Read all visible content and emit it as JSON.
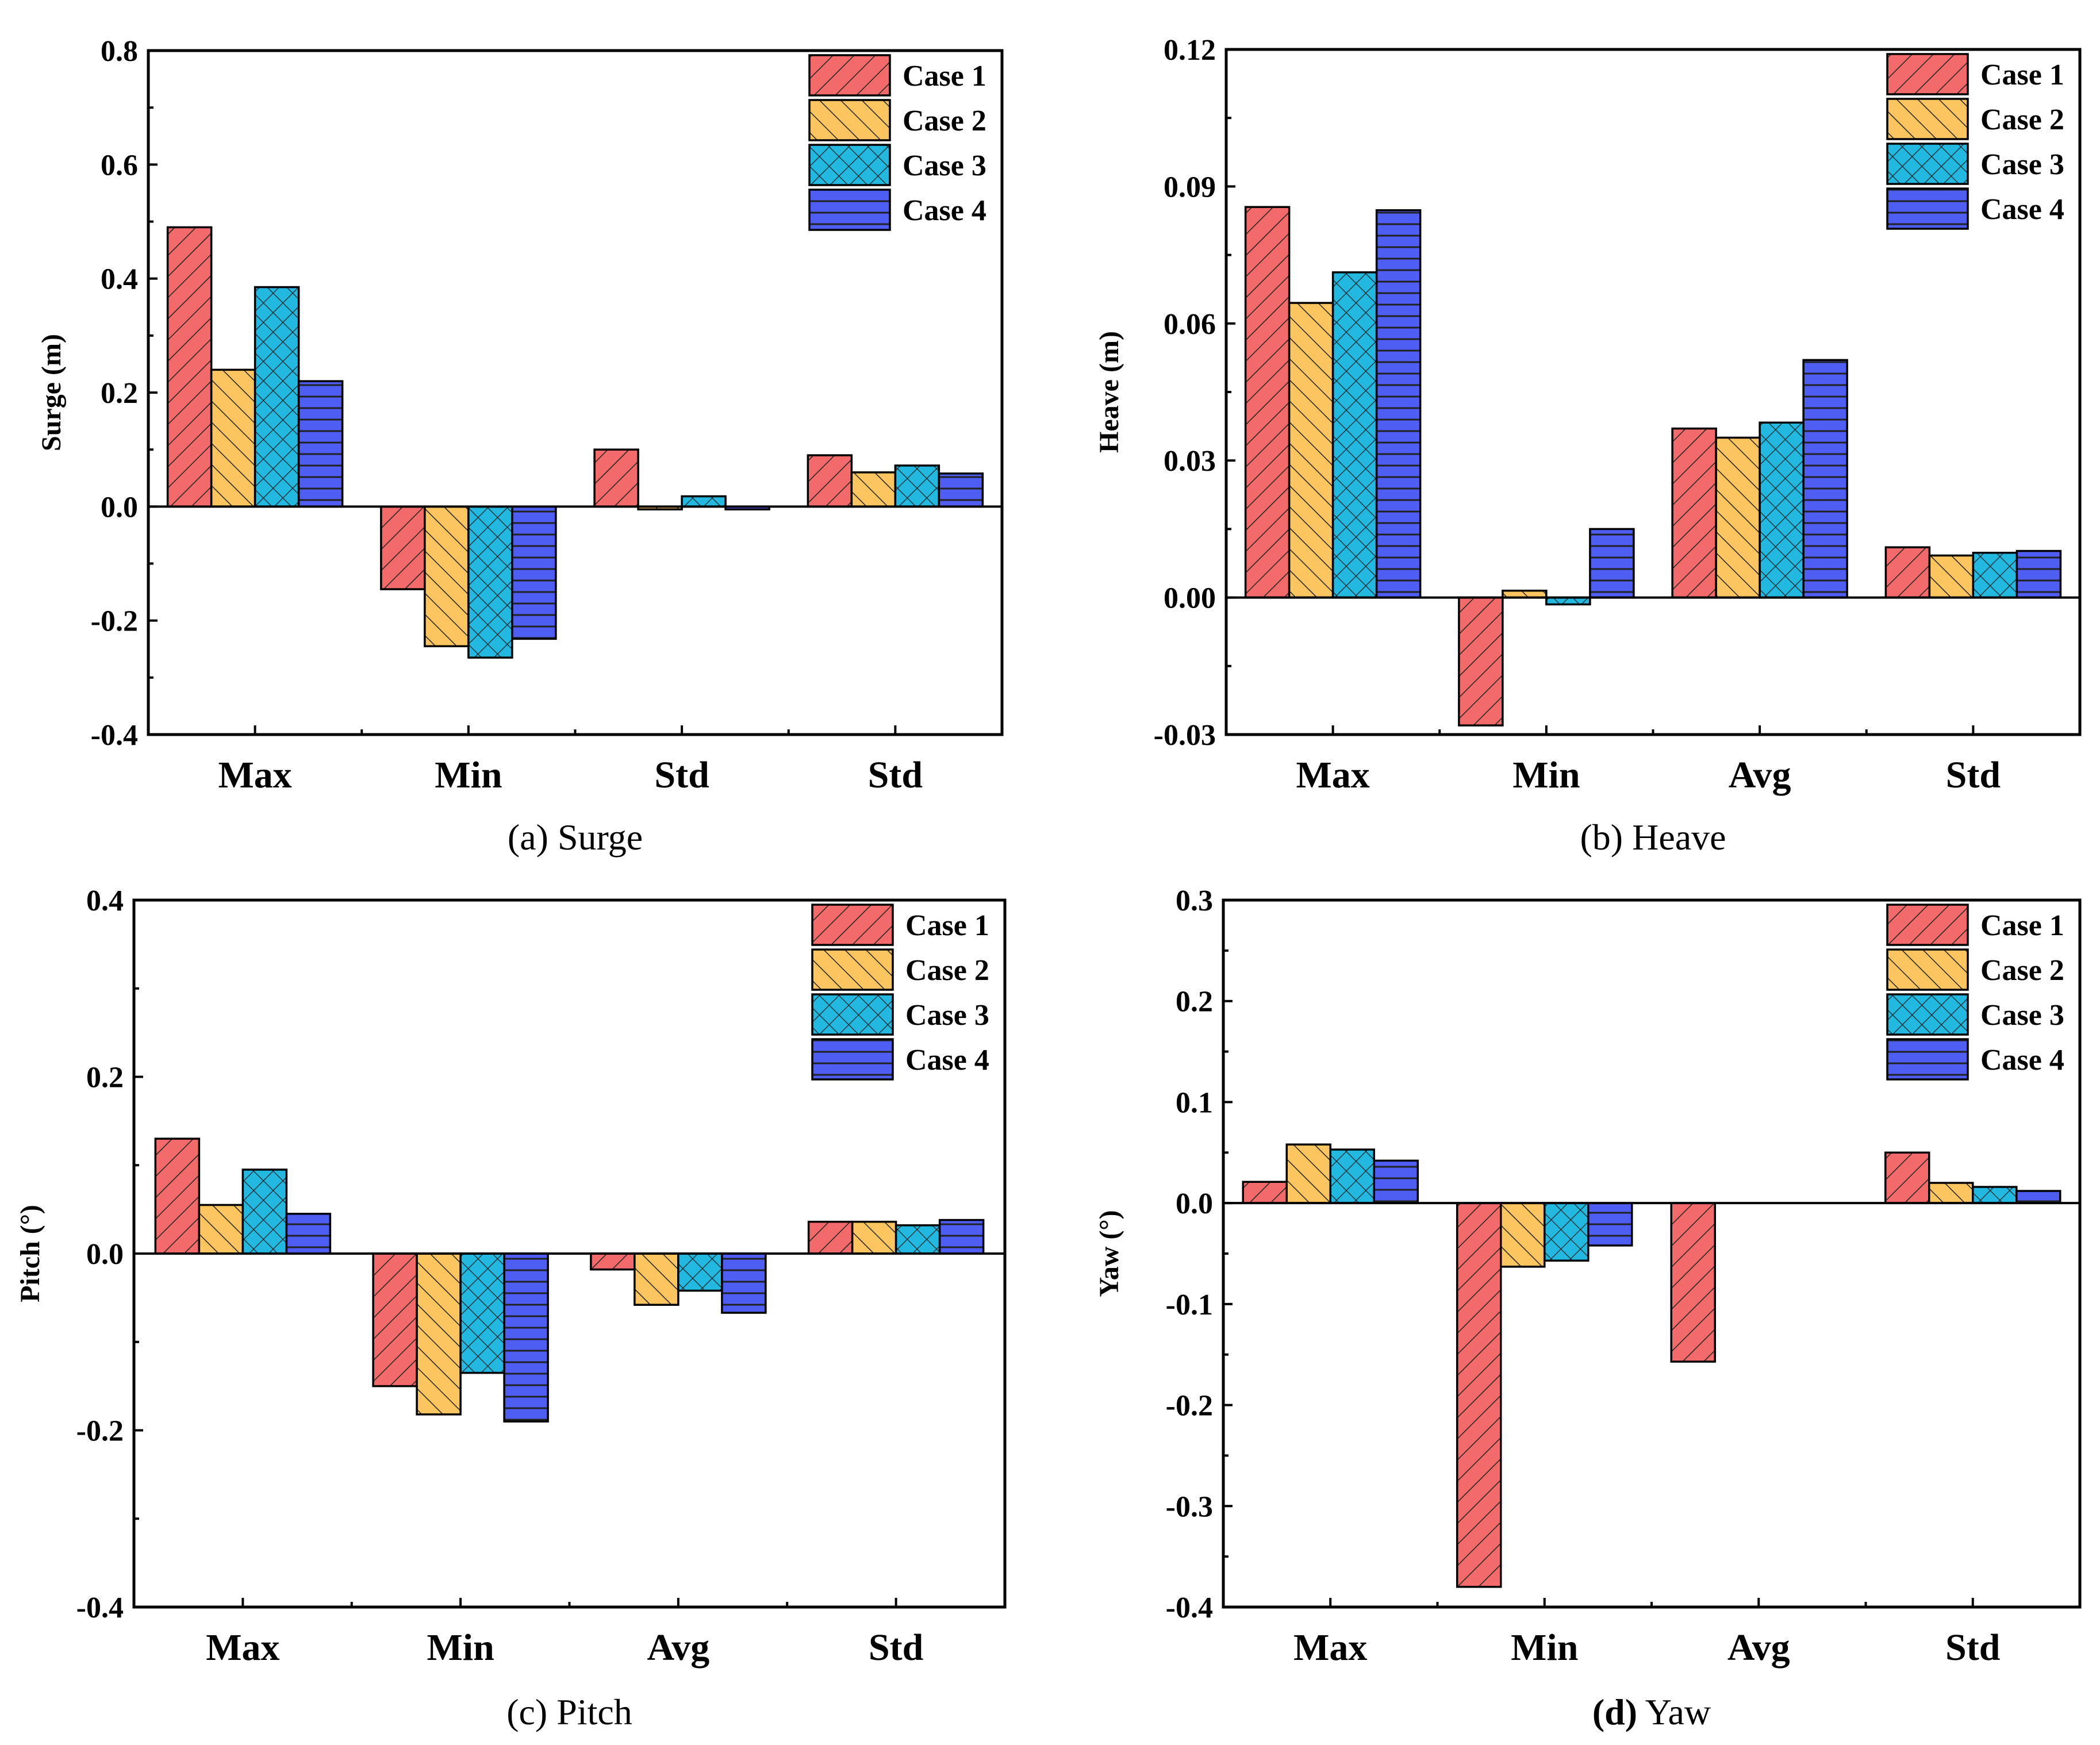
{
  "series_styles": [
    {
      "name": "Case 1",
      "color": "#f26a6a",
      "pattern": "diag-right"
    },
    {
      "name": "Case 2",
      "color": "#fdc560",
      "pattern": "diag-left"
    },
    {
      "name": "Case 3",
      "color": "#22b8e0",
      "pattern": "crosshatch"
    },
    {
      "name": "Case 4",
      "color": "#4f5ef2",
      "pattern": "horizontal"
    }
  ],
  "chart_data": [
    {
      "type": "bar",
      "title": "",
      "caption_prefix": "(a)",
      "caption_text": " Surge",
      "ylabel": "Surge (m)",
      "xlabel": "",
      "ylim": [
        -0.4,
        0.8
      ],
      "yticks": [
        -0.4,
        -0.2,
        0.0,
        0.2,
        0.4,
        0.6,
        0.8
      ],
      "ytick_labels": [
        "-0.4",
        "-0.2",
        "0.0",
        "0.2",
        "0.4",
        "0.6",
        "0.8"
      ],
      "categories": [
        "Max",
        "Min",
        "Std",
        "Std"
      ],
      "legend_position": "top-right",
      "series": [
        {
          "name": "Case 1",
          "values": [
            0.49,
            -0.145,
            0.1,
            0.09
          ]
        },
        {
          "name": "Case 2",
          "values": [
            0.24,
            -0.245,
            -0.005,
            0.06
          ]
        },
        {
          "name": "Case 3",
          "values": [
            0.385,
            -0.265,
            0.018,
            0.072
          ]
        },
        {
          "name": "Case 4",
          "values": [
            0.22,
            -0.232,
            -0.005,
            0.058
          ]
        }
      ]
    },
    {
      "type": "bar",
      "title": "",
      "caption_prefix": "(b)",
      "caption_text": " Heave",
      "ylabel": "Heave (m)",
      "xlabel": "",
      "ylim": [
        -0.03,
        0.12
      ],
      "yticks": [
        -0.03,
        0.0,
        0.03,
        0.06,
        0.09,
        0.12
      ],
      "ytick_labels": [
        "-0.03",
        "0.00",
        "0.03",
        "0.06",
        "0.09",
        "0.12"
      ],
      "categories": [
        "Max",
        "Min",
        "Avg",
        "Std"
      ],
      "legend_position": "top-right",
      "series": [
        {
          "name": "Case 1",
          "values": [
            0.0855,
            -0.028,
            0.037,
            0.011
          ]
        },
        {
          "name": "Case 2",
          "values": [
            0.0645,
            0.0015,
            0.035,
            0.0092
          ]
        },
        {
          "name": "Case 3",
          "values": [
            0.0712,
            -0.0015,
            0.0383,
            0.0098
          ]
        },
        {
          "name": "Case 4",
          "values": [
            0.0848,
            0.015,
            0.052,
            0.0102
          ]
        }
      ]
    },
    {
      "type": "bar",
      "title": "",
      "caption_prefix": "(c)",
      "caption_text": " Pitch",
      "ylabel": "Pitch (°)",
      "xlabel": "",
      "ylim": [
        -0.4,
        0.4
      ],
      "yticks": [
        -0.4,
        -0.2,
        0.0,
        0.2,
        0.4
      ],
      "ytick_labels": [
        "-0.4",
        "-0.2",
        "0.0",
        "0.2",
        "0.4"
      ],
      "categories": [
        "Max",
        "Min",
        "Avg",
        "Std"
      ],
      "legend_position": "top-right",
      "series": [
        {
          "name": "Case 1",
          "values": [
            0.13,
            -0.15,
            -0.018,
            0.036
          ]
        },
        {
          "name": "Case 2",
          "values": [
            0.055,
            -0.182,
            -0.058,
            0.036
          ]
        },
        {
          "name": "Case 3",
          "values": [
            0.095,
            -0.135,
            -0.042,
            0.032
          ]
        },
        {
          "name": "Case 4",
          "values": [
            0.045,
            -0.19,
            -0.067,
            0.038
          ]
        }
      ]
    },
    {
      "type": "bar",
      "title": "",
      "caption_prefix": "(d)",
      "caption_text": " Yaw",
      "caption_prefix_bold": true,
      "ylabel": "Yaw (°)",
      "xlabel": "",
      "ylim": [
        -0.4,
        0.3
      ],
      "yticks": [
        -0.4,
        -0.3,
        -0.2,
        -0.1,
        0.0,
        0.1,
        0.2,
        0.3
      ],
      "ytick_labels": [
        "-0.4",
        "-0.3",
        "-0.2",
        "-0.1",
        "0.0",
        "0.1",
        "0.2",
        "0.3"
      ],
      "categories": [
        "Max",
        "Min",
        "Avg",
        "Std"
      ],
      "legend_position": "top-right",
      "series": [
        {
          "name": "Case 1",
          "values": [
            0.021,
            -0.38,
            -0.157,
            0.05
          ]
        },
        {
          "name": "Case 2",
          "values": [
            0.058,
            -0.063,
            0.0,
            0.02
          ]
        },
        {
          "name": "Case 3",
          "values": [
            0.053,
            -0.057,
            0.0,
            0.016
          ]
        },
        {
          "name": "Case 4",
          "values": [
            0.042,
            -0.042,
            0.0,
            0.012
          ]
        }
      ]
    }
  ]
}
